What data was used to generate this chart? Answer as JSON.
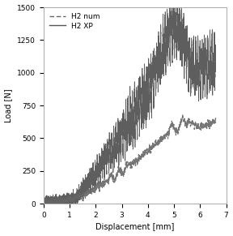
{
  "title": "",
  "xlabel": "Displacement [mm]",
  "ylabel": "Load [N]",
  "xlim": [
    0,
    7
  ],
  "ylim": [
    0,
    1500
  ],
  "xticks": [
    0,
    1,
    2,
    3,
    4,
    5,
    6,
    7
  ],
  "yticks": [
    0,
    250,
    500,
    750,
    1000,
    1250,
    1500
  ],
  "legend": [
    {
      "label": "H2 num",
      "linestyle": "--",
      "color": "#666666"
    },
    {
      "label": "H2 XP",
      "linestyle": "-",
      "color": "#555555"
    }
  ],
  "line_color_xp": "#555555",
  "line_color_num": "#666666",
  "background_color": "#ffffff",
  "figsize": [
    2.88,
    2.91
  ],
  "dpi": 100
}
